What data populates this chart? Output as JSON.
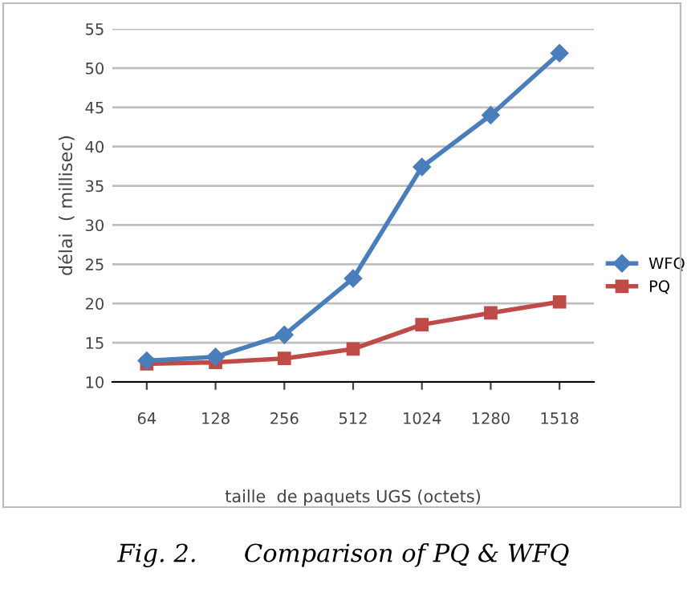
{
  "chart_data": {
    "type": "line",
    "xlabel": "taille  de paquets UGS (octets)",
    "ylabel": "délai  ( millisec)",
    "categories": [
      "64",
      "128",
      "256",
      "512",
      "1024",
      "1280",
      "1518"
    ],
    "series": [
      {
        "name": "WFQ",
        "color": "#4a7ebb",
        "marker": "diamond",
        "values": [
          12.7,
          13.2,
          16.0,
          23.2,
          37.4,
          44.0,
          51.9
        ]
      },
      {
        "name": "PQ",
        "color": "#be4b48",
        "marker": "square",
        "values": [
          12.3,
          12.5,
          13.0,
          14.2,
          17.3,
          18.8,
          20.2
        ]
      }
    ],
    "ylim": [
      10,
      55
    ],
    "yticks": [
      10,
      15,
      20,
      25,
      30,
      35,
      40,
      45,
      50,
      55
    ],
    "grid": "y",
    "legend": "right",
    "annotations": [
      "Fig. 2.      Comparison of PQ & WFQ"
    ]
  }
}
